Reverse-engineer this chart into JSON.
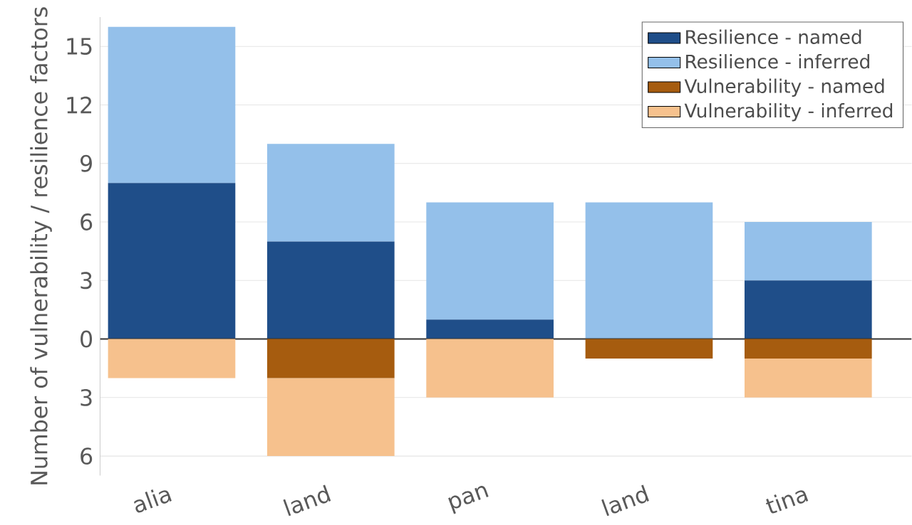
{
  "chart_data": {
    "type": "bar",
    "stacked": true,
    "ylabel": "Number of vulnerability / resilience factors",
    "categories": [
      "alia",
      "land",
      "pan",
      "land",
      "tina"
    ],
    "series": [
      {
        "name": "Resilience - named",
        "color": "#1f4e89",
        "values": [
          8,
          5,
          1,
          0,
          3
        ]
      },
      {
        "name": "Resilience - inferred",
        "color": "#94c0ea",
        "values": [
          8,
          5,
          6,
          7,
          3
        ]
      },
      {
        "name": "Vulnerability - named",
        "color": "#a65c0f",
        "values": [
          0,
          -2,
          0,
          -1,
          -1
        ]
      },
      {
        "name": "Vulnerability - inferred",
        "color": "#f6c18d",
        "values": [
          -2,
          -4,
          -3,
          0,
          -2
        ]
      }
    ],
    "ylim": [
      -7,
      16.5
    ],
    "yticks": [
      {
        "value": -6,
        "label": "6"
      },
      {
        "value": -3,
        "label": "3"
      },
      0,
      3,
      6,
      9,
      12,
      15
    ],
    "grid": "y",
    "legend": "top right"
  }
}
